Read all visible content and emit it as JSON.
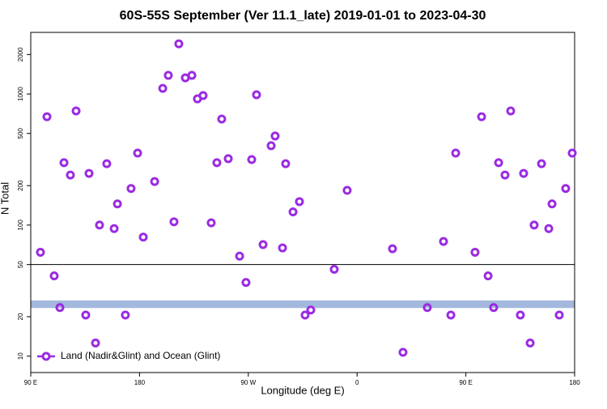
{
  "chart_data": {
    "type": "scatter",
    "title": "60S-55S September (Ver 11.1_late)   2019-01-01 to 2023-04-30",
    "xlabel": "Longitude (deg E)",
    "ylabel": "N Total",
    "series": [
      {
        "name": "Land (Nadir&Glint) and Ocean (Glint)",
        "color": "#9a2be2",
        "x": [
          98.0,
          103.4,
          109.4,
          114.1,
          117.5,
          122.8,
          127.5,
          135.5,
          138.2,
          143.6,
          146.9,
          152.9,
          159.0,
          161.7,
          168.3,
          173.0,
          178.4,
          183.1,
          192.5,
          199.2,
          203.8,
          208.5,
          212.5,
          217.9,
          223.3,
          227.9,
          232.6,
          239.3,
          244.0,
          248.0,
          253.4,
          262.8,
          268.1,
          272.8,
          276.8,
          282.2,
          288.9,
          292.2,
          298.3,
          300.9,
          307.0,
          312.3,
          317.0,
          321.7,
          341.1,
          351.8,
          389.3,
          398.0,
          418.1,
          431.5,
          437.6,
          441.6,
          457.6,
          463.0,
          468.4,
          473.0,
          477.1,
          482.4,
          487.1,
          495.1,
          497.8,
          503.2,
          506.5,
          512.6,
          518.6,
          521.3,
          527.3,
          532.6,
          538.0
        ],
        "values": [
          62,
          671,
          41,
          23.5,
          299,
          241,
          742,
          20.6,
          248,
          12.6,
          100,
          294,
          94,
          145,
          20.6,
          190,
          354,
          81,
          215,
          1104,
          1387,
          106,
          2415,
          1327,
          1387,
          918,
          972,
          104,
          299,
          644,
          321,
          58,
          36.5,
          316,
          986,
          71,
          403,
          478,
          67,
          294,
          126,
          151,
          20.6,
          22.5,
          46,
          184,
          66,
          10.7,
          23.5,
          75,
          20.6,
          354,
          62,
          671,
          41,
          23.5,
          299,
          241,
          742,
          20.6,
          248,
          12.6,
          100,
          294,
          94,
          145,
          20.6,
          190,
          354
        ]
      }
    ],
    "xlim": [
      90,
      540
    ],
    "xticks": [
      {
        "value": 90,
        "label": "90 E"
      },
      {
        "value": 180,
        "label": "180"
      },
      {
        "value": 270,
        "label": "90 W"
      },
      {
        "value": 360,
        "label": "0"
      },
      {
        "value": 450,
        "label": "90 E"
      },
      {
        "value": 540,
        "label": "180"
      }
    ],
    "ylim": [
      7.5,
      2950
    ],
    "yscale": "log",
    "yticks": [
      10,
      20,
      50,
      100,
      200,
      500,
      1000,
      2000
    ],
    "hline": 50,
    "band": [
      23.3,
      26.6
    ],
    "band_color": "#a3b8dc",
    "legend": "lower left"
  }
}
